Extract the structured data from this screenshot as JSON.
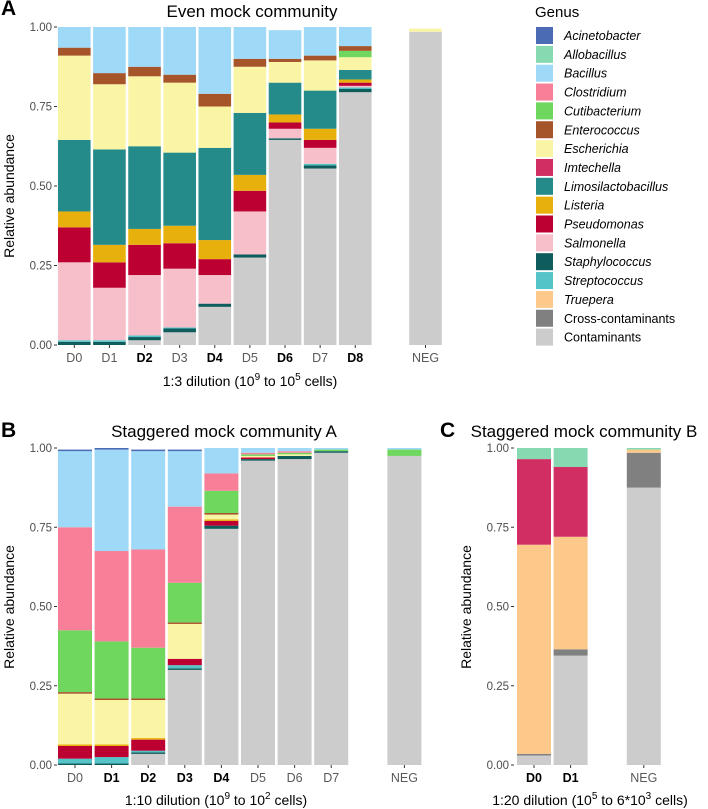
{
  "legend": {
    "title": "Genus",
    "items": [
      {
        "name": "Acinetobacter",
        "color": "#4C6BB5",
        "italic": true
      },
      {
        "name": "Allobacillus",
        "color": "#86D9B0",
        "italic": true
      },
      {
        "name": "Bacillus",
        "color": "#9ED9F7",
        "italic": true
      },
      {
        "name": "Clostridium",
        "color": "#F77F97",
        "italic": true
      },
      {
        "name": "Cutibacterium",
        "color": "#6FD65E",
        "italic": true
      },
      {
        "name": "Enterococcus",
        "color": "#A6542A",
        "italic": true
      },
      {
        "name": "Escherichia",
        "color": "#FAF4A5",
        "italic": true
      },
      {
        "name": "Imtechella",
        "color": "#D12E63",
        "italic": true
      },
      {
        "name": "Limosilactobacillus",
        "color": "#248A8A",
        "italic": true
      },
      {
        "name": "Listeria",
        "color": "#E8B00C",
        "italic": true
      },
      {
        "name": "Pseudomonas",
        "color": "#BD0032",
        "italic": true
      },
      {
        "name": "Salmonella",
        "color": "#F7BFCA",
        "italic": true
      },
      {
        "name": "Staphylococcus",
        "color": "#0E5C5C",
        "italic": true
      },
      {
        "name": "Streptococcus",
        "color": "#54C4C9",
        "italic": true
      },
      {
        "name": "Truepera",
        "color": "#FCC98A",
        "italic": true
      },
      {
        "name": "Cross-contaminants",
        "color": "#808080",
        "italic": false
      },
      {
        "name": "Contaminants",
        "color": "#CCCCCC",
        "italic": false
      }
    ]
  },
  "chart_data": [
    {
      "type": "bar",
      "stacked": true,
      "panel": "A",
      "title": "Even mock community",
      "ylabel": "Relative abundance",
      "xlabel_pre": "1:3 dilution (10",
      "xlabel_sup1": "9",
      "xlabel_mid": " to 10",
      "xlabel_sup2": "5",
      "xlabel_post": " cells)",
      "ylim": [
        0,
        1
      ],
      "yticks": [
        "0.00",
        "0.25",
        "0.50",
        "0.75",
        "1.00"
      ],
      "categories": [
        "D0",
        "D1",
        "D2",
        "D3",
        "D4",
        "D5",
        "D6",
        "D7",
        "D8",
        "",
        "NEG"
      ],
      "bold": [
        "D2",
        "D4",
        "D6",
        "D8"
      ],
      "series": [
        {
          "name": "Contaminants",
          "values": [
            0.0,
            0.0,
            0.015,
            0.04,
            0.12,
            0.275,
            0.645,
            0.555,
            0.795,
            0,
            0.985
          ]
        },
        {
          "name": "Staphylococcus",
          "values": [
            0.01,
            0.01,
            0.01,
            0.012,
            0.01,
            0.01,
            0.005,
            0.01,
            0.01,
            0,
            0
          ]
        },
        {
          "name": "Streptococcus",
          "values": [
            0.005,
            0.005,
            0.005,
            0.003,
            0,
            0,
            0,
            0.005,
            0.005,
            0,
            0
          ]
        },
        {
          "name": "Salmonella",
          "values": [
            0.245,
            0.165,
            0.19,
            0.185,
            0.09,
            0.135,
            0.03,
            0.05,
            0.005,
            0,
            0
          ]
        },
        {
          "name": "Pseudomonas",
          "values": [
            0.11,
            0.08,
            0.095,
            0.08,
            0.05,
            0.065,
            0.02,
            0.025,
            0.01,
            0,
            0
          ]
        },
        {
          "name": "Listeria",
          "values": [
            0.05,
            0.055,
            0.05,
            0.055,
            0.06,
            0.05,
            0.025,
            0.035,
            0.01,
            0,
            0
          ]
        },
        {
          "name": "Limosilactobacillus",
          "values": [
            0.225,
            0.3,
            0.26,
            0.23,
            0.29,
            0.195,
            0.1,
            0.12,
            0.03,
            0,
            0
          ]
        },
        {
          "name": "Escherichia",
          "values": [
            0.265,
            0.205,
            0.22,
            0.22,
            0.13,
            0.145,
            0.065,
            0.095,
            0.04,
            0,
            0.01
          ]
        },
        {
          "name": "Cutibacterium",
          "values": [
            0,
            0,
            0,
            0,
            0,
            0,
            0,
            0,
            0.02,
            0,
            0
          ]
        },
        {
          "name": "Enterococcus",
          "values": [
            0.025,
            0.035,
            0.03,
            0.025,
            0.04,
            0.025,
            0.01,
            0.015,
            0.015,
            0,
            0
          ]
        },
        {
          "name": "Bacillus",
          "values": [
            0.065,
            0.145,
            0.125,
            0.15,
            0.21,
            0.1,
            0.09,
            0.09,
            0.06,
            0,
            0
          ]
        }
      ]
    },
    {
      "type": "bar",
      "stacked": true,
      "panel": "B",
      "title": "Staggered mock community A",
      "ylabel": "Relative abundance",
      "xlabel_pre": "1:10 dilution (10",
      "xlabel_sup1": "9",
      "xlabel_mid": " to 10",
      "xlabel_sup2": "2",
      "xlabel_post": " cells)",
      "ylim": [
        0,
        1
      ],
      "yticks": [
        "0.00",
        "0.25",
        "0.50",
        "0.75",
        "1.00"
      ],
      "categories": [
        "D0",
        "D1",
        "D2",
        "D3",
        "D4",
        "D5",
        "D6",
        "D7",
        "",
        "NEG"
      ],
      "bold": [
        "D1",
        "D2",
        "D3",
        "D4"
      ],
      "series": [
        {
          "name": "Contaminants",
          "values": [
            0.0,
            0.0,
            0.035,
            0.3,
            0.745,
            0.96,
            0.965,
            0.985,
            0,
            0.975
          ]
        },
        {
          "name": "Staphylococcus",
          "values": [
            0.005,
            0.005,
            0.005,
            0.005,
            0.01,
            0.005,
            0.01,
            0.005,
            0,
            0
          ]
        },
        {
          "name": "Streptococcus",
          "values": [
            0.015,
            0.02,
            0.005,
            0.01,
            0,
            0,
            0,
            0,
            0,
            0
          ]
        },
        {
          "name": "Pseudomonas",
          "values": [
            0.04,
            0.035,
            0.035,
            0.02,
            0.015,
            0.005,
            0,
            0,
            0,
            0
          ]
        },
        {
          "name": "Listeria",
          "values": [
            0.005,
            0.005,
            0.005,
            0,
            0.005,
            0,
            0,
            0,
            0,
            0
          ]
        },
        {
          "name": "Escherichia",
          "values": [
            0.16,
            0.14,
            0.12,
            0.11,
            0.015,
            0.005,
            0.005,
            0,
            0,
            0
          ]
        },
        {
          "name": "Enterococcus",
          "values": [
            0.005,
            0.005,
            0.005,
            0.005,
            0.005,
            0,
            0,
            0,
            0,
            0
          ]
        },
        {
          "name": "Cutibacterium",
          "values": [
            0.195,
            0.18,
            0.16,
            0.125,
            0.07,
            0.005,
            0.005,
            0.005,
            0,
            0.02
          ]
        },
        {
          "name": "Clostridium",
          "values": [
            0.325,
            0.285,
            0.31,
            0.24,
            0.055,
            0.005,
            0.005,
            0,
            0,
            0
          ]
        },
        {
          "name": "Bacillus",
          "values": [
            0.24,
            0.32,
            0.31,
            0.175,
            0.08,
            0.015,
            0.01,
            0.005,
            0,
            0.005
          ]
        },
        {
          "name": "Acinetobacter",
          "values": [
            0.005,
            0.005,
            0.005,
            0.005,
            0,
            0,
            0,
            0,
            0,
            0
          ]
        }
      ]
    },
    {
      "type": "bar",
      "stacked": true,
      "panel": "C",
      "title": "Staggered mock community B",
      "ylabel": "Relative abundance",
      "xlabel_pre": "1:20 dilution (10",
      "xlabel_sup1": "5",
      "xlabel_mid": " to 6*10",
      "xlabel_sup2": "3",
      "xlabel_post": " cells)",
      "ylim": [
        0,
        1
      ],
      "yticks": [
        "0.00",
        "0.25",
        "0.50",
        "0.75",
        "1.00"
      ],
      "categories": [
        "D0",
        "D1",
        "",
        "NEG"
      ],
      "bold": [
        "D0",
        "D1"
      ],
      "series": [
        {
          "name": "Contaminants",
          "values": [
            0.03,
            0.345,
            0,
            0.875
          ]
        },
        {
          "name": "Cross-contaminants",
          "values": [
            0.005,
            0.02,
            0,
            0.11
          ]
        },
        {
          "name": "Truepera",
          "values": [
            0.66,
            0.355,
            0,
            0.01
          ]
        },
        {
          "name": "Imtechella",
          "values": [
            0.27,
            0.22,
            0,
            0
          ]
        },
        {
          "name": "Allobacillus",
          "values": [
            0.035,
            0.06,
            0,
            0.005
          ]
        }
      ]
    }
  ]
}
